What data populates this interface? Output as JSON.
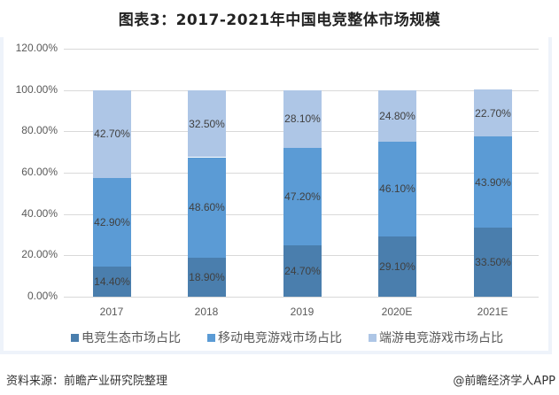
{
  "title": "图表3：2017-2021年中国电竞整体市场规模",
  "colors": {
    "ecosystem": "#4a7ead",
    "mobile": "#5b9bd5",
    "pc": "#aec6e6",
    "panel_border": "#eef3fa",
    "grid": "#d9d9d9"
  },
  "y_ticks": [
    "120.00%",
    "100.00%",
    "80.00%",
    "60.00%",
    "40.00%",
    "20.00%",
    "0.00%"
  ],
  "legend": [
    {
      "label": "电竞生态市场占比",
      "color": "#4a7ead"
    },
    {
      "label": "移动电竞游戏市场占比",
      "color": "#5b9bd5"
    },
    {
      "label": "端游电竞游戏市场占比",
      "color": "#aec6e6"
    }
  ],
  "footer": {
    "source": "资料来源：前瞻产业研究院整理",
    "brand": "@前瞻经济学人APP"
  },
  "chart_data": {
    "type": "bar",
    "stacked": true,
    "title": "图表3：2017-2021年中国电竞整体市场规模",
    "xlabel": "",
    "ylabel": "",
    "ylim": [
      0,
      120
    ],
    "y_tick_format": "percent_2dp",
    "grid": true,
    "legend_position": "bottom",
    "categories": [
      "2017",
      "2018",
      "2019",
      "2020E",
      "2021E"
    ],
    "series": [
      {
        "name": "电竞生态市场占比",
        "values": [
          14.4,
          18.9,
          24.7,
          29.1,
          33.5
        ],
        "labels": [
          "14.40%",
          "18.90%",
          "24.70%",
          "29.10%",
          "33.50%"
        ]
      },
      {
        "name": "移动电竞游戏市场占比",
        "values": [
          42.9,
          48.6,
          47.2,
          46.1,
          43.9
        ],
        "labels": [
          "42.90%",
          "48.60%",
          "47.20%",
          "46.10%",
          "43.90%"
        ]
      },
      {
        "name": "端游电竞游戏市场占比",
        "values": [
          42.7,
          32.5,
          28.1,
          24.8,
          22.7
        ],
        "labels": [
          "42.70%",
          "32.50%",
          "28.10%",
          "24.80%",
          "22.70%"
        ]
      }
    ]
  }
}
